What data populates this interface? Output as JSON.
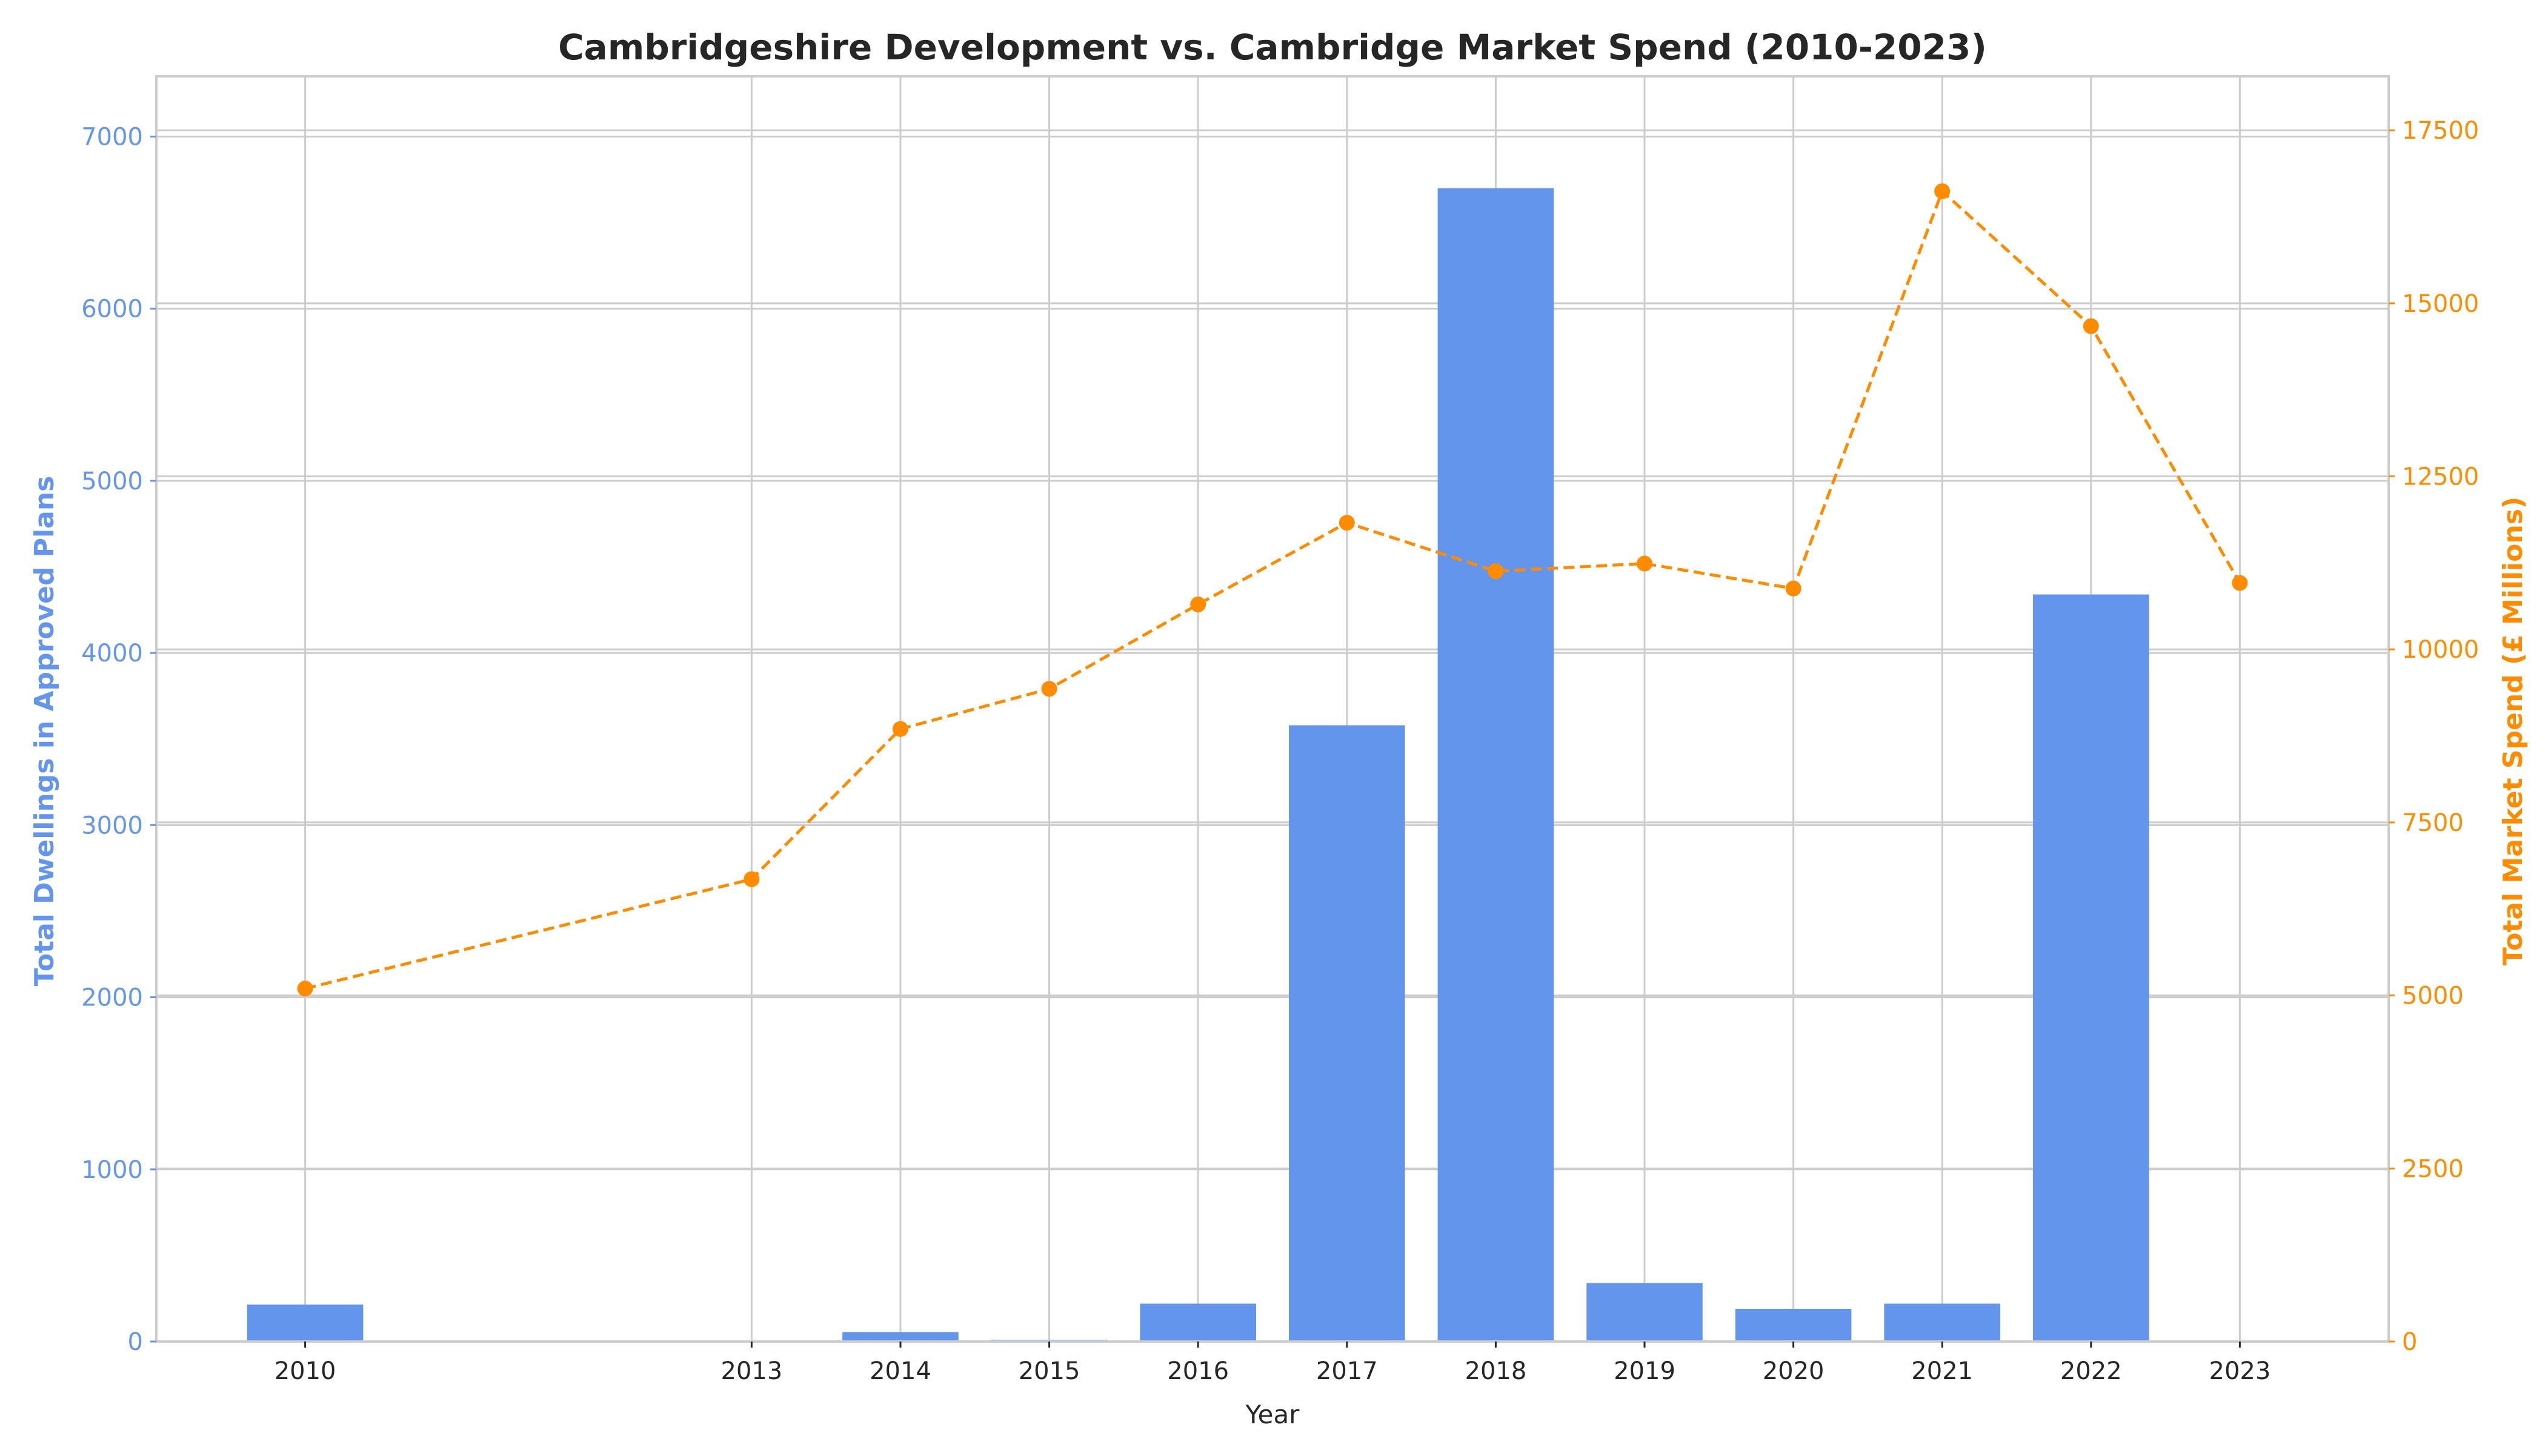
{
  "chart_data": {
    "type": "bar+line",
    "title": "Cambridgeshire Development vs. Cambridge Market Spend (2010-2023)",
    "xlabel": "Year",
    "categories": [
      2010,
      2013,
      2014,
      2015,
      2016,
      2017,
      2018,
      2019,
      2020,
      2021,
      2022,
      2023
    ],
    "x_ticks": [
      "2010",
      "2013",
      "2014",
      "2015",
      "2016",
      "2017",
      "2018",
      "2019",
      "2020",
      "2021",
      "2022",
      "2023"
    ],
    "x_range": [
      2009,
      2024
    ],
    "series": [
      {
        "name": "Total Dwellings in Approved Plans",
        "type": "bar",
        "axis": "left",
        "color": "#6495ed",
        "values": [
          215,
          0,
          55,
          10,
          220,
          3580,
          6700,
          340,
          190,
          220,
          4340,
          0
        ]
      },
      {
        "name": "Total Market Spend (£ Millions)",
        "type": "line",
        "axis": "right",
        "color": "#ff8c00",
        "line_style": "dashed",
        "marker": "circle",
        "values": [
          5100,
          6680,
          8850,
          9430,
          10650,
          11830,
          11130,
          11240,
          10880,
          16620,
          14670,
          10960
        ]
      }
    ],
    "y_left": {
      "label": "Total Dwellings in Approved Plans",
      "ticks": [
        0,
        1000,
        2000,
        3000,
        4000,
        5000,
        6000,
        7000
      ],
      "ylim": [
        0,
        7350
      ]
    },
    "y_right": {
      "label": "Total Market Spend (£ Millions)",
      "ticks": [
        0,
        2500,
        5000,
        7500,
        10000,
        12500,
        15000,
        17500
      ],
      "ylim": [
        0,
        18280
      ]
    },
    "grid": true,
    "legend": "none"
  }
}
